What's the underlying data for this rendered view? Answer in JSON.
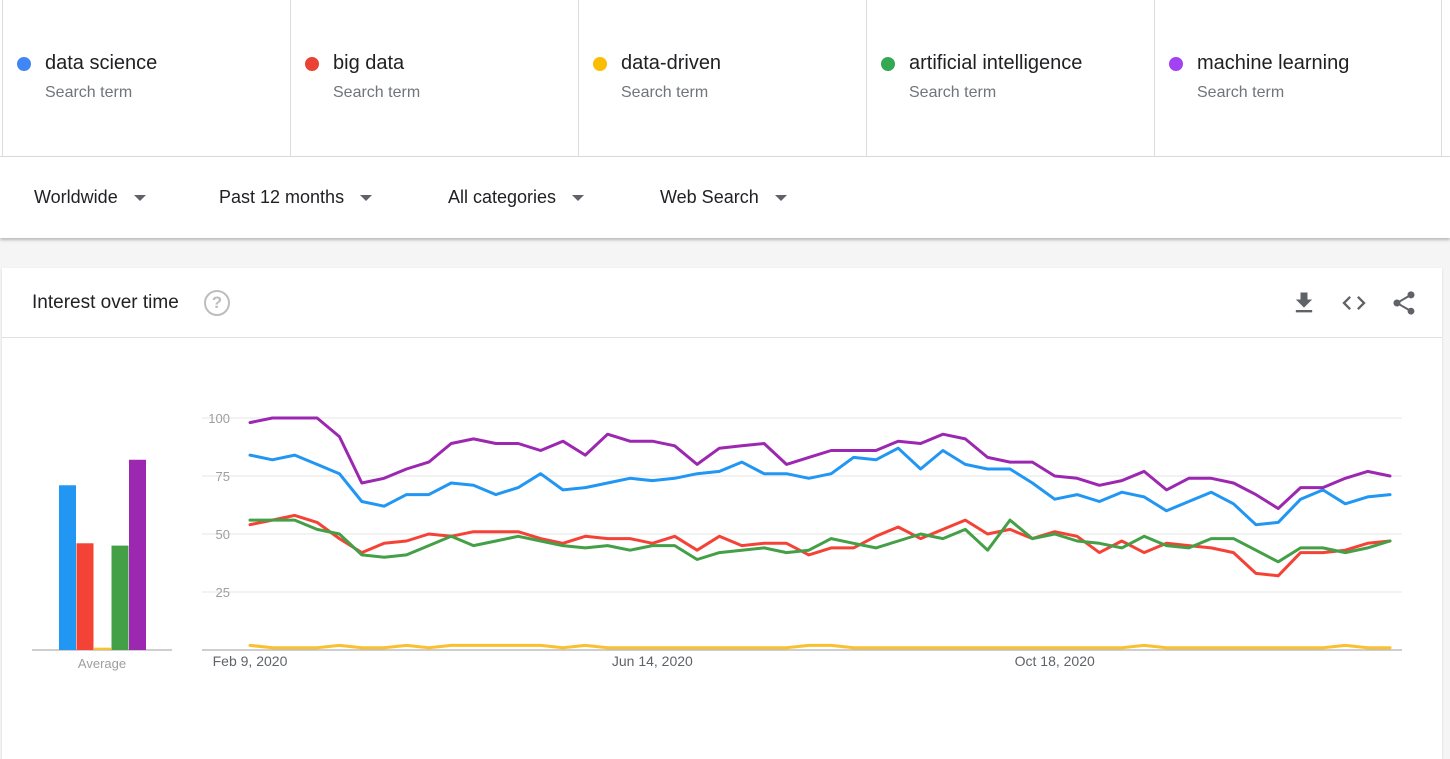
{
  "terms": [
    {
      "name": "data science",
      "sub": "Search term",
      "color": "#4285f4"
    },
    {
      "name": "big data",
      "sub": "Search term",
      "color": "#ea4335"
    },
    {
      "name": "data-driven",
      "sub": "Search term",
      "color": "#fbbc04"
    },
    {
      "name": "artificial intelligence",
      "sub": "Search term",
      "color": "#34a853"
    },
    {
      "name": "machine learning",
      "sub": "Search term",
      "color": "#a142f4"
    }
  ],
  "filters": {
    "region": "Worldwide",
    "time": "Past 12 months",
    "category": "All categories",
    "search_type": "Web Search"
  },
  "card": {
    "title": "Interest over time",
    "help_icon": "help-circle-icon",
    "icons": [
      "download-icon",
      "embed-code-icon",
      "share-icon"
    ]
  },
  "chart_data": {
    "type": "line",
    "yticks": [
      "100",
      "75",
      "50",
      "25"
    ],
    "ylim": [
      0,
      100
    ],
    "xtick_labels": [
      "Feb 9, 2020",
      "Jun 14, 2020",
      "Oct 18, 2020"
    ],
    "grid": true,
    "average_label": "Average",
    "averages": [
      {
        "name": "data science",
        "value": 71,
        "color": "#2196f3"
      },
      {
        "name": "big data",
        "value": 46,
        "color": "#f44336"
      },
      {
        "name": "data-driven",
        "value": 1,
        "color": "#fbc02d"
      },
      {
        "name": "artificial intelligence",
        "value": 45,
        "color": "#43a047"
      },
      {
        "name": "machine learning",
        "value": 82,
        "color": "#9c27b0"
      }
    ],
    "series": [
      {
        "name": "data science",
        "color": "#2196f3",
        "values": [
          84,
          82,
          84,
          80,
          76,
          64,
          62,
          67,
          67,
          72,
          71,
          67,
          70,
          76,
          69,
          70,
          72,
          74,
          73,
          74,
          76,
          77,
          81,
          76,
          76,
          74,
          76,
          83,
          82,
          87,
          78,
          86,
          80,
          78,
          78,
          72,
          65,
          67,
          64,
          68,
          66,
          60,
          64,
          68,
          63,
          54,
          55,
          65,
          69,
          63,
          66,
          67
        ]
      },
      {
        "name": "big data",
        "color": "#f44336",
        "values": [
          54,
          56,
          58,
          55,
          48,
          42,
          46,
          47,
          50,
          49,
          51,
          51,
          51,
          48,
          46,
          49,
          48,
          48,
          46,
          49,
          43,
          49,
          45,
          46,
          46,
          41,
          44,
          44,
          49,
          53,
          48,
          52,
          56,
          50,
          52,
          48,
          51,
          49,
          42,
          47,
          42,
          46,
          45,
          44,
          42,
          33,
          32,
          42,
          42,
          43,
          46,
          47
        ]
      },
      {
        "name": "data-driven",
        "color": "#fbc02d",
        "values": [
          2,
          1,
          1,
          1,
          2,
          1,
          1,
          2,
          1,
          2,
          2,
          2,
          2,
          2,
          1,
          2,
          1,
          1,
          1,
          1,
          1,
          1,
          1,
          1,
          1,
          2,
          2,
          1,
          1,
          1,
          1,
          1,
          1,
          1,
          1,
          1,
          1,
          1,
          1,
          1,
          2,
          1,
          1,
          1,
          1,
          1,
          1,
          1,
          1,
          2,
          1,
          1
        ]
      },
      {
        "name": "artificial intelligence",
        "color": "#43a047",
        "values": [
          56,
          56,
          56,
          52,
          50,
          41,
          40,
          41,
          45,
          49,
          45,
          47,
          49,
          47,
          45,
          44,
          45,
          43,
          45,
          45,
          39,
          42,
          43,
          44,
          42,
          43,
          48,
          46,
          44,
          47,
          50,
          48,
          52,
          43,
          56,
          48,
          50,
          47,
          46,
          44,
          49,
          45,
          44,
          48,
          48,
          43,
          38,
          44,
          44,
          42,
          44,
          47
        ]
      },
      {
        "name": "machine learning",
        "color": "#9c27b0",
        "values": [
          98,
          100,
          100,
          100,
          92,
          72,
          74,
          78,
          81,
          89,
          91,
          89,
          89,
          86,
          90,
          84,
          93,
          90,
          90,
          88,
          80,
          87,
          88,
          89,
          80,
          83,
          86,
          86,
          86,
          90,
          89,
          93,
          91,
          83,
          81,
          81,
          75,
          74,
          71,
          73,
          77,
          69,
          74,
          74,
          72,
          67,
          61,
          70,
          70,
          74,
          77,
          75
        ]
      }
    ]
  }
}
